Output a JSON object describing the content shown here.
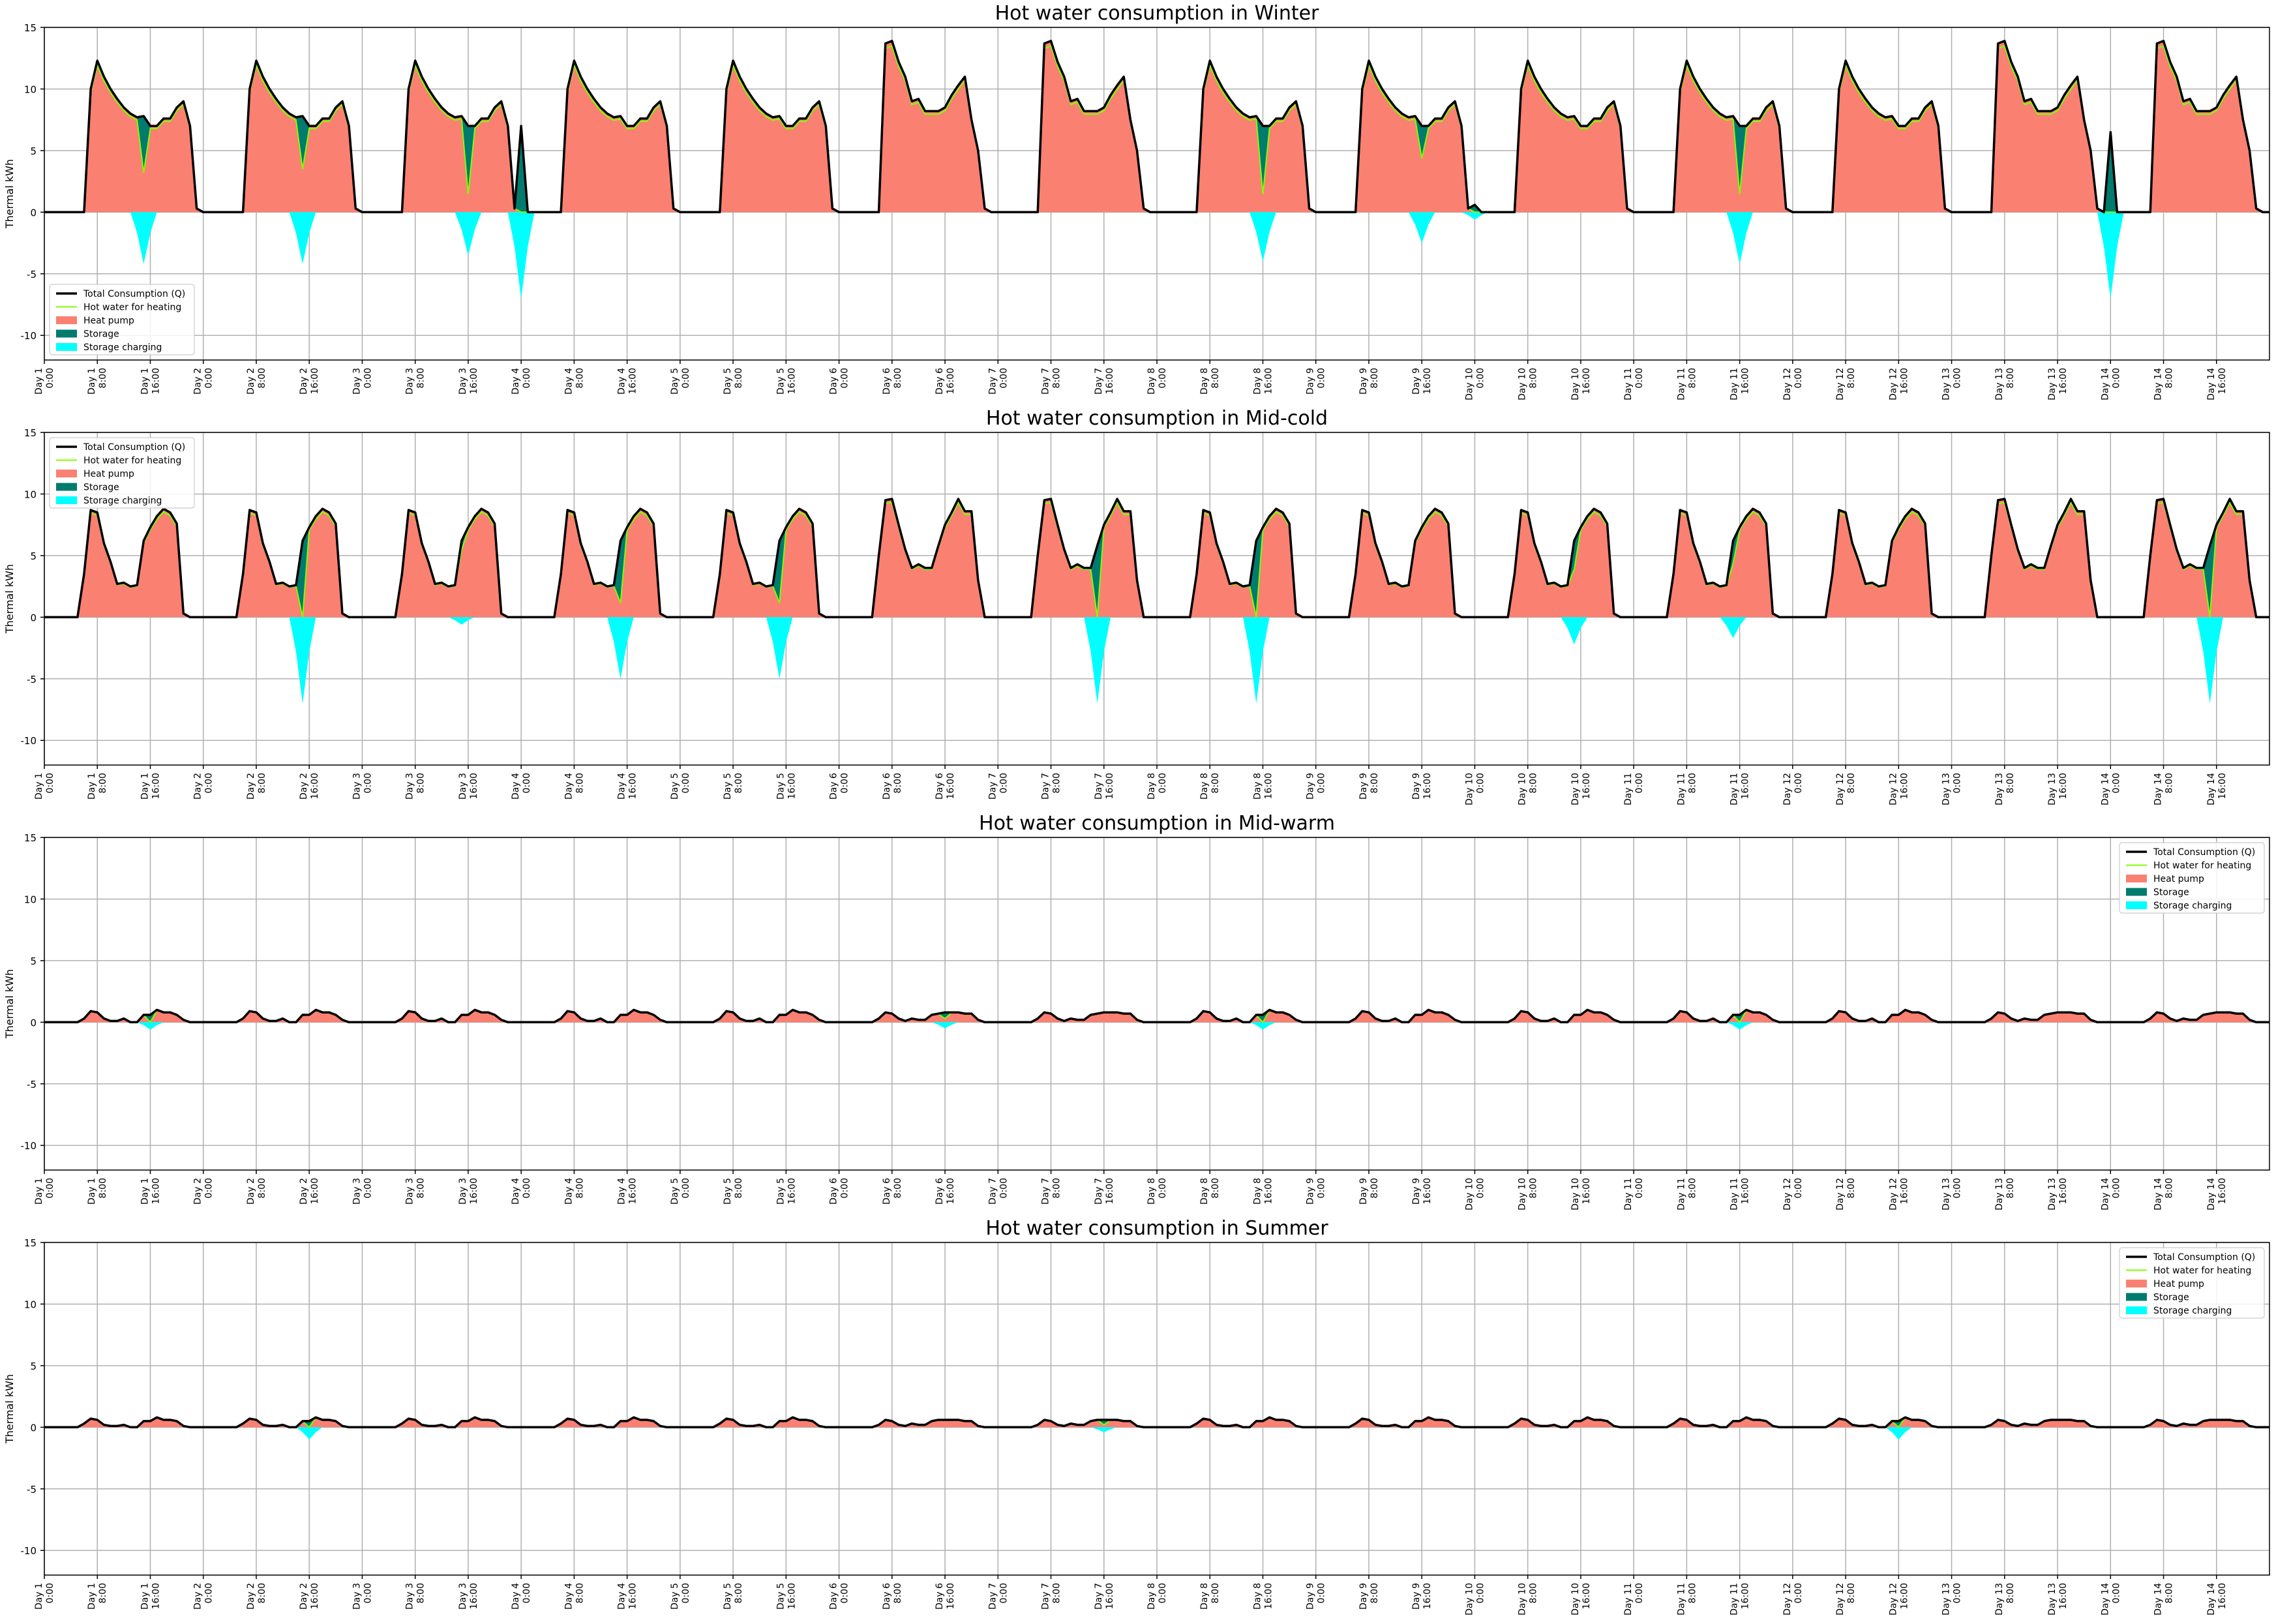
{
  "chart_data": [
    {
      "type": "area",
      "title": "Hot water consumption in Winter",
      "ylabel": "Thermal kWh",
      "xlabel": "",
      "ylim": [
        -12,
        15
      ],
      "yticks": [
        -10,
        -5,
        0,
        5,
        10,
        15
      ],
      "xticks": [
        "Day 1\n0:00",
        "Day 1\n8:00",
        "Day 1\n16:00",
        "Day 2\n0:00",
        "Day 2\n8:00",
        "Day 2\n16:00",
        "Day 3\n0:00",
        "Day 3\n8:00",
        "Day 3\n16:00",
        "Day 4\n0:00",
        "Day 4\n8:00",
        "Day 4\n16:00",
        "Day 5\n0:00",
        "Day 5\n8:00",
        "Day 5\n16:00",
        "Day 6\n0:00",
        "Day 6\n8:00",
        "Day 6\n16:00",
        "Day 7\n0:00",
        "Day 7\n8:00",
        "Day 7\n16:00",
        "Day 8\n0:00",
        "Day 8\n8:00",
        "Day 8\n16:00",
        "Day 9\n0:00",
        "Day 9\n8:00",
        "Day 9\n16:00",
        "Day 10\n0:00",
        "Day 10\n8:00",
        "Day 10\n16:00",
        "Day 11\n0:00",
        "Day 11\n8:00",
        "Day 11\n16:00",
        "Day 12\n0:00",
        "Day 12\n8:00",
        "Day 12\n16:00",
        "Day 13\n0:00",
        "Day 13\n8:00",
        "Day 13\n16:00",
        "Day 14\n0:00",
        "Day 14\n8:00",
        "Day 14\n16:00"
      ],
      "grid": true,
      "legend_position": "lower-left",
      "series_template": {
        "weekday": [
          0,
          0,
          0,
          0,
          0,
          0,
          0,
          10,
          12.3,
          11,
          10,
          9.2,
          8.5,
          8,
          7.7,
          7.8,
          7,
          7,
          7.6,
          7.6,
          8.5,
          9,
          7,
          0.3
        ],
        "peak": [
          0,
          0,
          0,
          0,
          0,
          0,
          0,
          13.7,
          13.9,
          12.2,
          11,
          9,
          9.2,
          8.2,
          8.2,
          8.2,
          8.5,
          9.5,
          10.3,
          11,
          7.5,
          5,
          0.3,
          0
        ]
      },
      "day_types": [
        "weekday",
        "weekday",
        "weekday",
        "weekday",
        "weekday",
        "peak",
        "peak",
        "weekday",
        "weekday",
        "weekday",
        "weekday",
        "weekday",
        "peak",
        "peak"
      ],
      "storage_events": [
        [
          1,
          15,
          4.5,
          -4.2
        ],
        [
          2,
          15,
          4.2,
          -4.2
        ],
        [
          3,
          16,
          5.5,
          -3.5
        ],
        [
          4,
          0,
          7,
          -7
        ],
        [
          8,
          16,
          5.5,
          -4
        ],
        [
          9,
          16,
          2.5,
          -2.5
        ],
        [
          10,
          0,
          0.6,
          -0.6
        ],
        [
          11,
          16,
          5.5,
          -4.2
        ],
        [
          14,
          0,
          6.5,
          -7
        ]
      ],
      "series": [
        {
          "name": "Total Consumption (Q)",
          "color": "#000000"
        },
        {
          "name": "Hot water for heating",
          "color": "#7fff00"
        },
        {
          "name": "Heat pump",
          "color": "#fa8072"
        },
        {
          "name": "Storage",
          "color": "#007b6e"
        },
        {
          "name": "Storage charging",
          "color": "#00ffff"
        }
      ]
    },
    {
      "type": "area",
      "title": "Hot water consumption in Mid-cold",
      "ylabel": "Thermal kWh",
      "xlabel": "",
      "ylim": [
        -12,
        15
      ],
      "yticks": [
        -10,
        -5,
        0,
        5,
        10,
        15
      ],
      "grid": true,
      "legend_position": "upper-left",
      "series_template": {
        "weekday": [
          0,
          0,
          0,
          0,
          0,
          0,
          3.5,
          8.7,
          8.5,
          6,
          4.5,
          2.7,
          2.8,
          2.5,
          2.6,
          6.2,
          7.3,
          8.2,
          8.8,
          8.5,
          7.6,
          0.3,
          0,
          0
        ],
        "peak": [
          0,
          0,
          0,
          0,
          0,
          0,
          5,
          9.5,
          9.6,
          7.5,
          5.5,
          4,
          4.3,
          4,
          4,
          5.8,
          7.5,
          8.5,
          9.6,
          8.6,
          8.6,
          3,
          0,
          0
        ]
      },
      "day_types": [
        "weekday",
        "weekday",
        "weekday",
        "weekday",
        "weekday",
        "peak",
        "peak",
        "weekday",
        "weekday",
        "weekday",
        "weekday",
        "weekday",
        "peak",
        "peak"
      ],
      "storage_events": [
        [
          2,
          15,
          6.5,
          -7
        ],
        [
          3,
          15,
          0.6,
          -0.6
        ],
        [
          4,
          15,
          5,
          -5
        ],
        [
          5,
          15,
          5,
          -5
        ],
        [
          7,
          15,
          7,
          -7
        ],
        [
          8,
          15,
          7,
          -7
        ],
        [
          10,
          15,
          2.2,
          -2.2
        ],
        [
          11,
          15,
          1.7,
          -1.7
        ],
        [
          14,
          15,
          7,
          -7
        ]
      ],
      "series": [
        {
          "name": "Total Consumption (Q)",
          "color": "#000000"
        },
        {
          "name": "Hot water for heating",
          "color": "#7fff00"
        },
        {
          "name": "Heat pump",
          "color": "#fa8072"
        },
        {
          "name": "Storage",
          "color": "#007b6e"
        },
        {
          "name": "Storage charging",
          "color": "#00ffff"
        }
      ]
    },
    {
      "type": "area",
      "title": "Hot water consumption in Mid-warm",
      "ylabel": "Thermal kWh",
      "xlabel": "",
      "ylim": [
        -12,
        15
      ],
      "yticks": [
        -10,
        -5,
        0,
        5,
        10,
        15
      ],
      "grid": true,
      "legend_position": "upper-right",
      "series_template": {
        "weekday": [
          0,
          0,
          0,
          0,
          0,
          0,
          0.3,
          0.9,
          0.8,
          0.3,
          0.1,
          0.1,
          0.3,
          0,
          0,
          0.6,
          0.6,
          1,
          0.8,
          0.8,
          0.6,
          0.2,
          0,
          0
        ],
        "peak": [
          0,
          0,
          0,
          0,
          0,
          0,
          0.3,
          0.8,
          0.7,
          0.3,
          0.1,
          0.3,
          0.2,
          0.2,
          0.6,
          0.7,
          0.8,
          0.8,
          0.8,
          0.7,
          0.7,
          0.2,
          0,
          0
        ]
      },
      "day_types": [
        "weekday",
        "weekday",
        "weekday",
        "weekday",
        "weekday",
        "peak",
        "peak",
        "weekday",
        "weekday",
        "weekday",
        "weekday",
        "weekday",
        "peak",
        "peak"
      ],
      "storage_events": [
        [
          1,
          16,
          0.6,
          -0.6
        ],
        [
          6,
          16,
          0.5,
          -0.5
        ],
        [
          8,
          16,
          0.6,
          -0.6
        ],
        [
          11,
          16,
          0.6,
          -0.6
        ]
      ],
      "series": [
        {
          "name": "Total Consumption (Q)",
          "color": "#000000"
        },
        {
          "name": "Hot water for heating",
          "color": "#7fff00"
        },
        {
          "name": "Heat pump",
          "color": "#fa8072"
        },
        {
          "name": "Storage",
          "color": "#007b6e"
        },
        {
          "name": "Storage charging",
          "color": "#00ffff"
        }
      ]
    },
    {
      "type": "area",
      "title": "Hot water consumption in Summer",
      "ylabel": "Thermal kWh",
      "xlabel": "",
      "ylim": [
        -12,
        15
      ],
      "yticks": [
        -10,
        -5,
        0,
        5,
        10,
        15
      ],
      "grid": true,
      "legend_position": "upper-right",
      "series_template": {
        "weekday": [
          0,
          0,
          0,
          0,
          0,
          0,
          0.3,
          0.7,
          0.6,
          0.2,
          0.1,
          0.1,
          0.2,
          0,
          0,
          0.5,
          0.5,
          0.8,
          0.6,
          0.6,
          0.5,
          0.1,
          0,
          0
        ],
        "peak": [
          0,
          0,
          0,
          0,
          0,
          0,
          0.2,
          0.6,
          0.5,
          0.2,
          0.1,
          0.3,
          0.2,
          0.2,
          0.5,
          0.6,
          0.6,
          0.6,
          0.6,
          0.5,
          0.5,
          0.1,
          0,
          0
        ]
      },
      "day_types": [
        "weekday",
        "weekday",
        "weekday",
        "weekday",
        "weekday",
        "peak",
        "peak",
        "weekday",
        "weekday",
        "weekday",
        "weekday",
        "weekday",
        "peak",
        "peak"
      ],
      "storage_events": [
        [
          2,
          16,
          1,
          -1
        ],
        [
          7,
          16,
          0.4,
          -0.4
        ],
        [
          12,
          16,
          1,
          -1
        ]
      ],
      "series": [
        {
          "name": "Total Consumption (Q)",
          "color": "#000000"
        },
        {
          "name": "Hot water for heating",
          "color": "#7fff00"
        },
        {
          "name": "Heat pump",
          "color": "#fa8072"
        },
        {
          "name": "Storage",
          "color": "#007b6e"
        },
        {
          "name": "Storage charging",
          "color": "#00ffff"
        }
      ]
    }
  ]
}
